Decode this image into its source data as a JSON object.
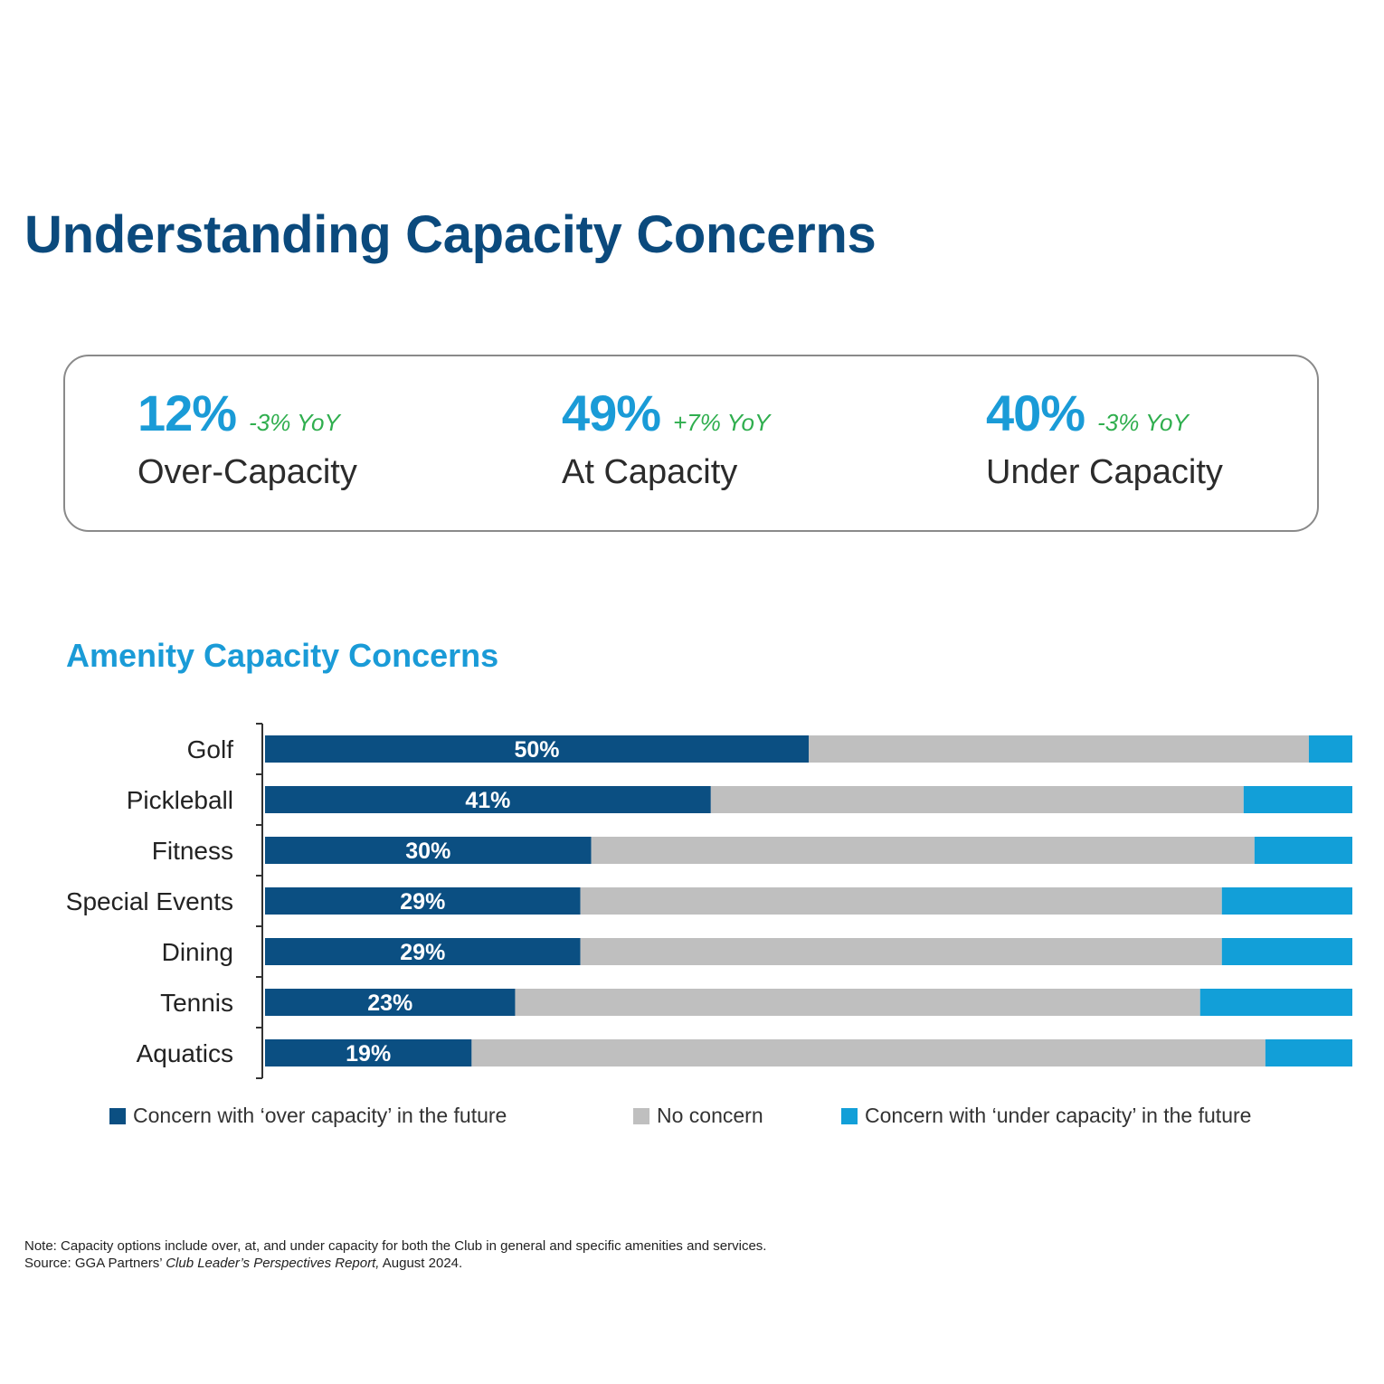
{
  "title": "Understanding Capacity Concerns",
  "stats": [
    {
      "value": "12%",
      "yoy": "-3% YoY",
      "label": "Over-Capacity"
    },
    {
      "value": "49%",
      "yoy": "+7% YoY",
      "label": "At Capacity"
    },
    {
      "value": "40%",
      "yoy": "-3% YoY",
      "label": "Under Capacity"
    }
  ],
  "colors": {
    "title": "#0b4a7d",
    "accent": "#1a9bd7",
    "yoy": "#2fae4e",
    "over": "#0b4f82",
    "none": "#bfbfbf",
    "under": "#129fd8"
  },
  "chart_data": {
    "type": "bar",
    "orientation": "horizontal",
    "stacked": true,
    "title": "Amenity Capacity Concerns",
    "categories": [
      "Golf",
      "Pickleball",
      "Fitness",
      "Special Events",
      "Dining",
      "Tennis",
      "Aquatics"
    ],
    "series": [
      {
        "name": "Concern with ‘over capacity’ in the future",
        "values": [
          50,
          41,
          30,
          29,
          29,
          23,
          19
        ],
        "labels": [
          "50%",
          "41%",
          "30%",
          "29%",
          "29%",
          "23%",
          "19%"
        ]
      },
      {
        "name": "No concern",
        "values": [
          46,
          49,
          61,
          59,
          59,
          63,
          73
        ]
      },
      {
        "name": "Concern with ‘under capacity’ in the future",
        "values": [
          4,
          10,
          9,
          12,
          12,
          14,
          8
        ]
      }
    ],
    "xlim": [
      0,
      100
    ],
    "legend_position": "bottom",
    "grid": false
  },
  "notes": {
    "note": "Note: Capacity options include over, at, and under capacity for both the Club in general and specific amenities and services.",
    "source_prefix": "Source: GGA Partners’ ",
    "source_title": "Club Leader’s Perspectives Report,",
    "source_suffix": " August 2024."
  }
}
